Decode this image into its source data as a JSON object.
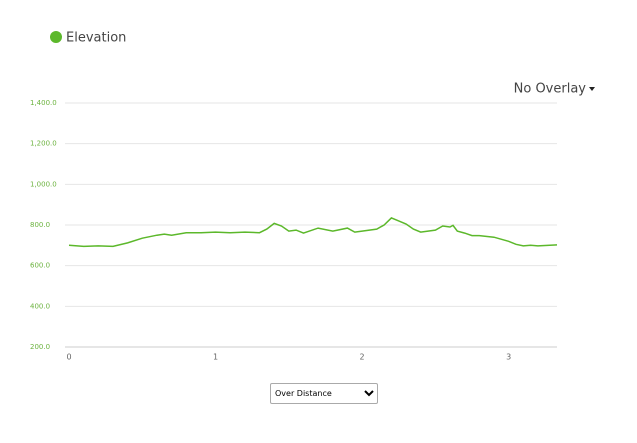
{
  "chart_data": {
    "type": "line",
    "x": [
      0,
      0.1,
      0.2,
      0.3,
      0.4,
      0.5,
      0.6,
      0.65,
      0.7,
      0.8,
      0.9,
      1.0,
      1.1,
      1.2,
      1.3,
      1.35,
      1.4,
      1.45,
      1.5,
      1.55,
      1.6,
      1.7,
      1.8,
      1.9,
      1.95,
      2.0,
      2.1,
      2.15,
      2.2,
      2.25,
      2.3,
      2.35,
      2.4,
      2.45,
      2.5,
      2.55,
      2.6,
      2.62,
      2.65,
      2.7,
      2.75,
      2.8,
      2.9,
      3.0,
      3.05,
      3.1,
      3.15,
      3.2,
      3.33
    ],
    "series": [
      {
        "name": "Elevation",
        "color": "#5cb82b",
        "values": [
          700,
          695,
          697,
          695,
          712,
          735,
          750,
          755,
          750,
          762,
          762,
          765,
          762,
          765,
          762,
          780,
          808,
          795,
          770,
          775,
          760,
          785,
          770,
          785,
          765,
          770,
          780,
          800,
          835,
          820,
          805,
          780,
          765,
          770,
          775,
          795,
          790,
          798,
          770,
          760,
          748,
          748,
          740,
          720,
          705,
          697,
          700,
          697,
          702
        ]
      }
    ],
    "xlim": [
      0,
      3.33
    ],
    "xticks": [
      0,
      1,
      2,
      3
    ],
    "ylim": [
      200,
      1400
    ],
    "yticks": [
      {
        "value": 200,
        "label": "200.0"
      },
      {
        "value": 400,
        "label": "400.0"
      },
      {
        "value": 600,
        "label": "600.0"
      },
      {
        "value": 800,
        "label": "800.0"
      },
      {
        "value": 1000,
        "label": "1,000.0"
      },
      {
        "value": 1200,
        "label": "1,200.0"
      },
      {
        "value": 1400,
        "label": "1,400.0"
      }
    ],
    "grid": true
  },
  "controls": {
    "overlay": "No Overlay",
    "mode_select": "Over Distance"
  }
}
